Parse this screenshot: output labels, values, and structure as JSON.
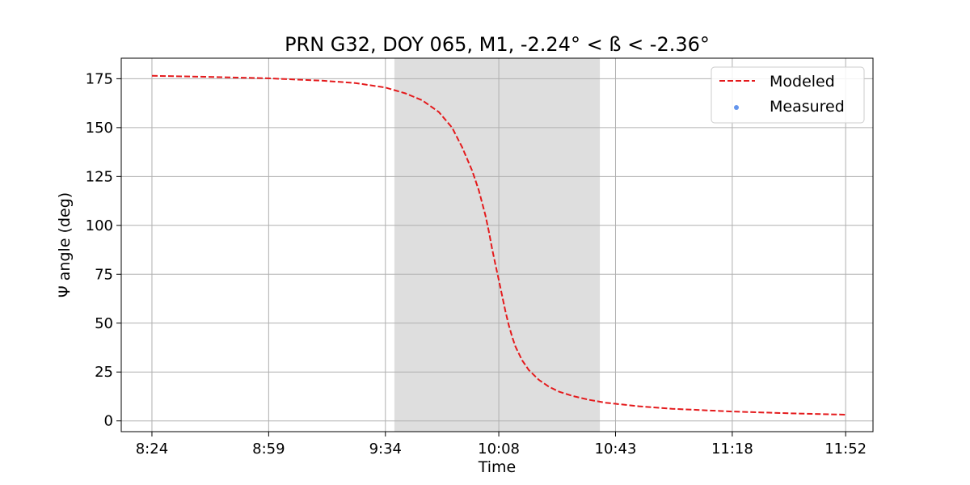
{
  "chart_data": {
    "type": "line",
    "title": "PRN G32, DOY 065, M1, -2.24° < ß < -2.36°",
    "xlabel": "Time",
    "ylabel": "Ψ angle (deg)",
    "x_tick_labels": [
      "8:24",
      "8:59",
      "9:34",
      "10:08",
      "10:43",
      "11:18",
      "11:52"
    ],
    "x_tick_minutes": [
      504,
      539,
      574,
      608,
      643,
      678,
      712
    ],
    "xlim_minutes": [
      494.8,
      720.2
    ],
    "yticks": [
      0,
      25,
      50,
      75,
      100,
      125,
      150,
      175
    ],
    "ylim": [
      -5.5,
      185.5
    ],
    "grid": true,
    "legend_position": "top-right",
    "shaded_span_minutes": [
      576.7,
      638.3
    ],
    "shaded_color": "#dedede",
    "series": [
      {
        "name": "Modeled",
        "style": "dashed",
        "color": "#e41a1c",
        "x_minutes": [
          504,
          520,
          539,
          555,
          565,
          574,
          580,
          585,
          590,
          594,
          597,
          600,
          602,
          604,
          605,
          606,
          607,
          608,
          609,
          610,
          611,
          612,
          613,
          615,
          617,
          620,
          623,
          626,
          630,
          635,
          640,
          650,
          660,
          678,
          695,
          712
        ],
        "y": [
          176.5,
          176.0,
          175.2,
          174.0,
          172.8,
          170.5,
          167.5,
          164.0,
          158.0,
          150.0,
          140.0,
          128.0,
          118.0,
          105.0,
          97.0,
          88.0,
          80.0,
          72.0,
          64.0,
          56.0,
          49.0,
          43.0,
          38.0,
          31.0,
          26.0,
          21.0,
          17.5,
          15.0,
          12.8,
          10.8,
          9.3,
          7.5,
          6.2,
          4.8,
          3.9,
          3.2
        ]
      },
      {
        "name": "Measured",
        "style": "dot",
        "color": "#6495ed",
        "x_minutes": [],
        "y": []
      }
    ]
  }
}
